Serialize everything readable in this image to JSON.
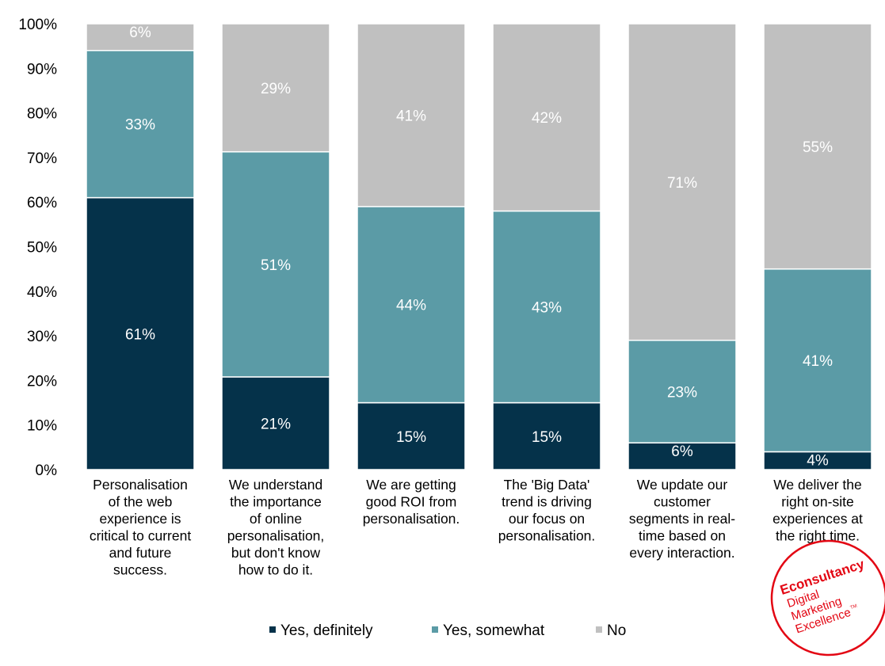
{
  "chart_data": {
    "type": "bar",
    "stacked": true,
    "percent_stacked": true,
    "categories": [
      "Personalisation of the web experience is critical to current and future success.",
      "We understand the importance of online personalisation, but don't know how to do it.",
      "We are getting good ROI from personalisation.",
      "The 'Big Data' trend is driving our focus on personalisation.",
      "We update our customer segments in real-time based on every interaction.",
      "We deliver the right on-site experiences at the right time."
    ],
    "category_lines": [
      [
        "Personalisation",
        "of the web",
        "experience is",
        "critical to current",
        "and future",
        "success."
      ],
      [
        "We understand",
        "the importance",
        "of online",
        "personalisation,",
        "but don't know",
        "how to do it."
      ],
      [
        "We are getting",
        "good ROI from",
        "personalisation."
      ],
      [
        "The 'Big Data'",
        "trend is driving",
        "our focus on",
        "personalisation."
      ],
      [
        "We update our",
        "customer",
        "segments in real-",
        "time based on",
        "every interaction."
      ],
      [
        "We deliver the",
        "right on-site",
        "experiences at",
        "the right time."
      ]
    ],
    "series": [
      {
        "name": "Yes, definitely",
        "color": "#05324a",
        "values": [
          61,
          21,
          15,
          15,
          6,
          4
        ]
      },
      {
        "name": "Yes, somewhat",
        "color": "#5b9ba6",
        "values": [
          33,
          51,
          44,
          43,
          23,
          41
        ]
      },
      {
        "name": "No",
        "color": "#c0c0c0",
        "values": [
          6,
          29,
          41,
          42,
          71,
          55
        ]
      }
    ],
    "y_ticks": [
      "0%",
      "10%",
      "20%",
      "30%",
      "40%",
      "50%",
      "60%",
      "70%",
      "80%",
      "90%",
      "100%"
    ],
    "ylim": [
      0,
      100
    ],
    "legend_position": "bottom",
    "grid": false
  },
  "logo": {
    "text_lines": [
      "Econsultancy",
      "Digital",
      "Marketing",
      "Excellence"
    ],
    "trademark": "TM",
    "color": "#e30613"
  }
}
